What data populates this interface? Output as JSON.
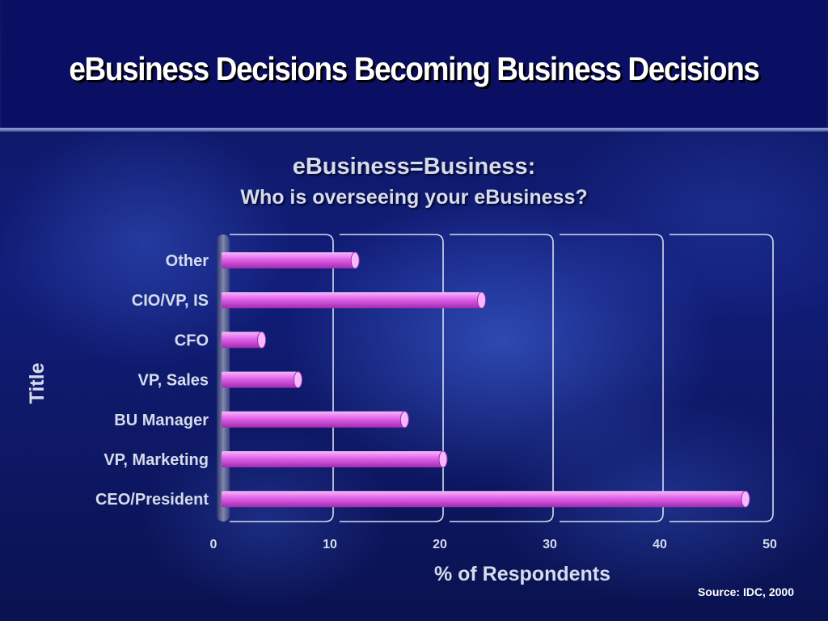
{
  "slide": {
    "title": "eBusiness Decisions Becoming Business Decisions",
    "source": "Source: IDC, 2000"
  },
  "colors": {
    "bar": "#e060e8",
    "bar_light": "#f7b8fb",
    "bar_dark": "#a02cb0",
    "grid": "#d8dcef",
    "text": "#d6dcec"
  },
  "chart_data": {
    "type": "bar",
    "orientation": "horizontal",
    "title": "eBusiness=Business:",
    "subtitle": "Who is overseeing your eBusiness?",
    "xlabel": "% of Respondents",
    "ylabel": "Title",
    "categories": [
      "Other",
      "CIO/VP, IS",
      "CFO",
      "VP, Sales",
      "BU Manager",
      "VP, Marketing",
      "CEO/President"
    ],
    "values": [
      12,
      23.5,
      3.5,
      6.8,
      16.5,
      20,
      47.5
    ],
    "xlim": [
      0,
      50
    ],
    "xticks": [
      0,
      10,
      20,
      30,
      40,
      50
    ],
    "grid": true
  }
}
